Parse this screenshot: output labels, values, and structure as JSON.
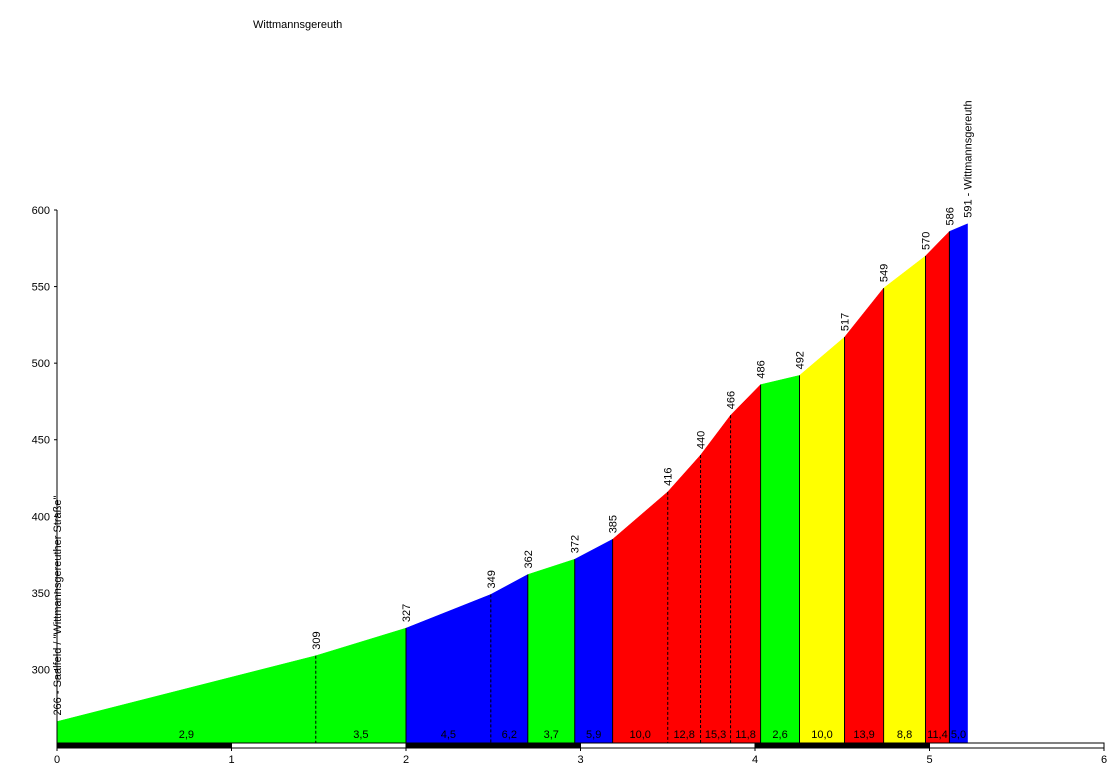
{
  "chart_data": {
    "type": "elevation-profile",
    "title": "Wittmannsgereuth",
    "x": [
      0,
      1.483,
      2.0,
      2.486,
      2.698,
      2.967,
      3.184,
      3.5,
      3.688,
      3.86,
      4.032,
      4.255,
      4.513,
      4.737,
      4.977,
      5.114,
      5.218
    ],
    "values": [
      266,
      309,
      327,
      349,
      362,
      372,
      385,
      416,
      440,
      466,
      486,
      492,
      517,
      549,
      570,
      586,
      591
    ],
    "value_labels": [
      "266 - Saalfeld / \"Wittmannsgereuther Straße\"",
      "309",
      "327",
      "349",
      "362",
      "372",
      "385",
      "416",
      "440",
      "466",
      "486",
      "492",
      "517",
      "549",
      "570",
      "586",
      "591 - Wittmannsgereuth"
    ],
    "gradients": {
      "values": [
        2.9,
        3.5,
        4.5,
        6.2,
        3.7,
        5.9,
        10.0,
        12.8,
        15.3,
        11.8,
        2.6,
        10.0,
        13.9,
        8.8,
        11.4,
        5.0
      ],
      "value_labels": [
        "2,9",
        "3,5",
        "4,5",
        "6,2",
        "3,7",
        "5,9",
        "10,0",
        "12,8",
        "15,3",
        "11,8",
        "2,6",
        "10,0",
        "13,9",
        "8,8",
        "11,4",
        "5,0"
      ],
      "colors": [
        "#00ff00",
        "#00ff00",
        "#0000ff",
        "#0000ff",
        "#00ff00",
        "#0000ff",
        "#ff0000",
        "#ff0000",
        "#ff0000",
        "#ff0000",
        "#00ff00",
        "#ffff00",
        "#ff0000",
        "#ffff00",
        "#ff0000",
        "#0000ff"
      ]
    },
    "xlim": [
      0,
      6
    ],
    "xticks": [
      0,
      1,
      2,
      3,
      4,
      5,
      6
    ],
    "ylim": [
      252,
      600
    ],
    "yticks": [
      300,
      350,
      400,
      450,
      500,
      550,
      600
    ]
  }
}
